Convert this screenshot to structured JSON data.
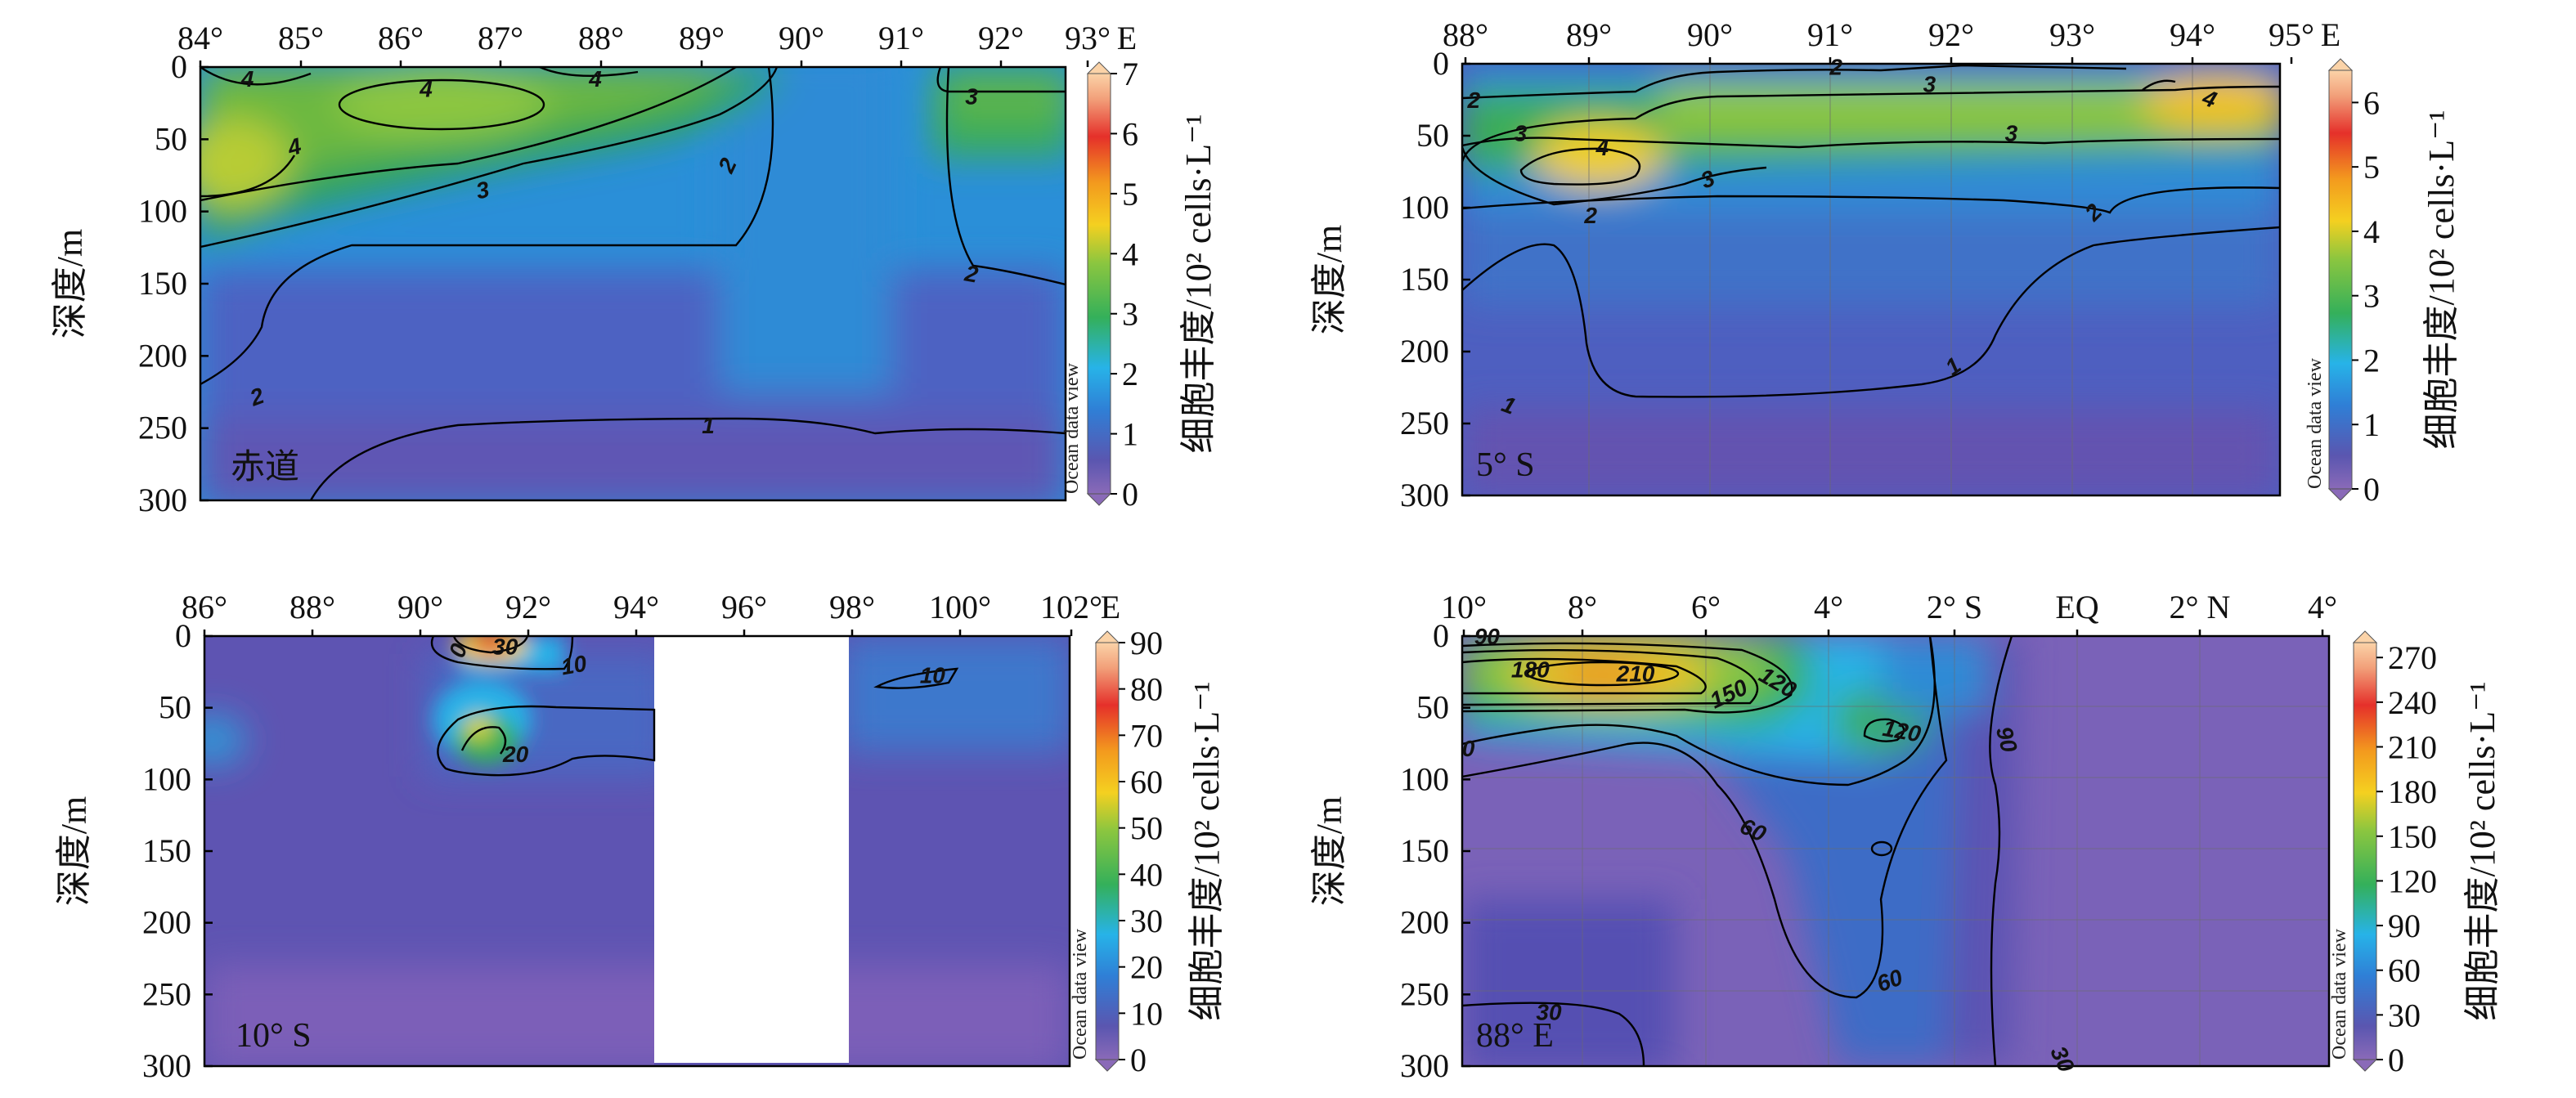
{
  "chart_data": [
    {
      "type": "heatmap",
      "panel_label": "赤道",
      "x_ticks": [
        "84°",
        "85°",
        "86°",
        "87°",
        "88°",
        "89°",
        "90°",
        "91°",
        "92°",
        "93°"
      ],
      "x_unit": "E",
      "x_range": [
        84,
        93.2
      ],
      "ylabel": "深度/m",
      "y_ticks": [
        0,
        50,
        100,
        150,
        200,
        250,
        300
      ],
      "y_range": [
        0,
        300
      ],
      "colorbar_label": "细胞丰度/10² cells·L⁻¹",
      "colorbar_range": [
        0,
        7
      ],
      "colorbar_ticks": [
        0,
        1,
        2,
        3,
        4,
        5,
        6,
        7
      ],
      "watermark": "Ocean data view",
      "contour_labels": [
        {
          "text": "4",
          "x": 84.5,
          "y": 8,
          "rot": 0
        },
        {
          "text": "4",
          "x": 86.4,
          "y": 15,
          "rot": 0
        },
        {
          "text": "4",
          "x": 88.2,
          "y": 8,
          "rot": 0
        },
        {
          "text": "4",
          "x": 85.0,
          "y": 55,
          "rot": -15
        },
        {
          "text": "3",
          "x": 92.2,
          "y": 20,
          "rot": 0
        },
        {
          "text": "3",
          "x": 87.0,
          "y": 85,
          "rot": -12
        },
        {
          "text": "2",
          "x": 89.6,
          "y": 68,
          "rot": -65
        },
        {
          "text": "2",
          "x": 92.2,
          "y": 143,
          "rot": 10
        },
        {
          "text": "2",
          "x": 84.6,
          "y": 228,
          "rot": -20
        },
        {
          "text": "1",
          "x": 89.4,
          "y": 248,
          "rot": 0
        }
      ]
    },
    {
      "type": "heatmap",
      "panel_label": "5° S",
      "x_ticks": [
        "88°",
        "89°",
        "90°",
        "91°",
        "92°",
        "93°",
        "94°",
        "95°"
      ],
      "x_unit": "E",
      "x_range": [
        88,
        95
      ],
      "ylabel": "深度/m",
      "y_ticks": [
        0,
        50,
        100,
        150,
        200,
        250,
        300
      ],
      "y_range": [
        0,
        300
      ],
      "colorbar_label": "细胞丰度/10² cells·L⁻¹",
      "colorbar_range": [
        0,
        6.5
      ],
      "colorbar_ticks": [
        0,
        1,
        2,
        3,
        4,
        5,
        6
      ],
      "watermark": "Ocean data view",
      "contour_labels": [
        {
          "text": "2",
          "x": 91.2,
          "y": 2,
          "rot": 0
        },
        {
          "text": "2",
          "x": 88.1,
          "y": 25,
          "rot": 0
        },
        {
          "text": "3",
          "x": 92.0,
          "y": 14,
          "rot": 0
        },
        {
          "text": "4",
          "x": 94.4,
          "y": 24,
          "rot": 20
        },
        {
          "text": "3",
          "x": 88.5,
          "y": 48,
          "rot": 0
        },
        {
          "text": "4",
          "x": 89.2,
          "y": 58,
          "rot": 0
        },
        {
          "text": "3",
          "x": 90.1,
          "y": 80,
          "rot": -20
        },
        {
          "text": "3",
          "x": 92.7,
          "y": 48,
          "rot": 0
        },
        {
          "text": "2",
          "x": 89.1,
          "y": 105,
          "rot": 0
        },
        {
          "text": "2",
          "x": 93.4,
          "y": 103,
          "rot": -45
        },
        {
          "text": "1",
          "x": 88.4,
          "y": 237,
          "rot": 20
        },
        {
          "text": "1",
          "x": 92.2,
          "y": 210,
          "rot": -35
        }
      ]
    },
    {
      "type": "heatmap",
      "panel_label": "10° S",
      "x_ticks": [
        "86°",
        "88°",
        "90°",
        "92°",
        "94°",
        "96°",
        "98°",
        "100°",
        "102°"
      ],
      "x_unit": "E",
      "x_range": [
        86,
        102.4
      ],
      "ylabel": "深度/m",
      "y_ticks": [
        0,
        50,
        100,
        150,
        200,
        250,
        300
      ],
      "y_range": [
        0,
        300
      ],
      "colorbar_label": "细胞丰度/10² cells·L⁻¹",
      "colorbar_range": [
        0,
        90
      ],
      "colorbar_ticks": [
        0,
        10,
        20,
        30,
        40,
        50,
        60,
        70,
        80,
        90
      ],
      "watermark": "Ocean data view",
      "no_data_x": [
        94.5,
        98.3
      ],
      "contour_labels": [
        {
          "text": "0",
          "x": 90.8,
          "y": 10,
          "rot": -70
        },
        {
          "text": "30",
          "x": 91.7,
          "y": 7,
          "rot": 0
        },
        {
          "text": "10",
          "x": 93.0,
          "y": 20,
          "rot": -10
        },
        {
          "text": "20",
          "x": 91.9,
          "y": 82,
          "rot": 0
        },
        {
          "text": "10",
          "x": 99.8,
          "y": 27,
          "rot": 0
        }
      ]
    },
    {
      "type": "heatmap",
      "panel_label": "88° E",
      "x_ticks": [
        "10°",
        "8°",
        "6°",
        "4°",
        "2° S",
        "EQ",
        "2° N",
        "4°"
      ],
      "x_range": [
        -10,
        4
      ],
      "ylabel": "深度/m",
      "y_ticks": [
        0,
        50,
        100,
        150,
        200,
        250,
        300
      ],
      "y_range": [
        0,
        300
      ],
      "colorbar_label": "细胞丰度/10² cells·L⁻¹",
      "colorbar_range": [
        0,
        280
      ],
      "colorbar_ticks": [
        0,
        30,
        60,
        90,
        120,
        150,
        180,
        210,
        240,
        270
      ],
      "watermark": "Ocean data view",
      "contour_labels": [
        {
          "text": "90",
          "x": -9.6,
          "y": 0,
          "rot": 0
        },
        {
          "text": "180",
          "x": -8.9,
          "y": 23,
          "rot": 0
        },
        {
          "text": "210",
          "x": -7.2,
          "y": 26,
          "rot": 0
        },
        {
          "text": "150",
          "x": -5.7,
          "y": 40,
          "rot": -25
        },
        {
          "text": "120",
          "x": -4.9,
          "y": 32,
          "rot": 30
        },
        {
          "text": "0",
          "x": -9.9,
          "y": 78,
          "rot": 0
        },
        {
          "text": "120",
          "x": -2.9,
          "y": 66,
          "rot": 10
        },
        {
          "text": "90",
          "x": -1.2,
          "y": 72,
          "rot": 75
        },
        {
          "text": "60",
          "x": -5.3,
          "y": 135,
          "rot": 25
        },
        {
          "text": "60",
          "x": -3.1,
          "y": 240,
          "rot": -20
        },
        {
          "text": "30",
          "x": -8.6,
          "y": 262,
          "rot": 0
        },
        {
          "text": "30",
          "x": -0.3,
          "y": 295,
          "rot": 65
        }
      ]
    }
  ]
}
